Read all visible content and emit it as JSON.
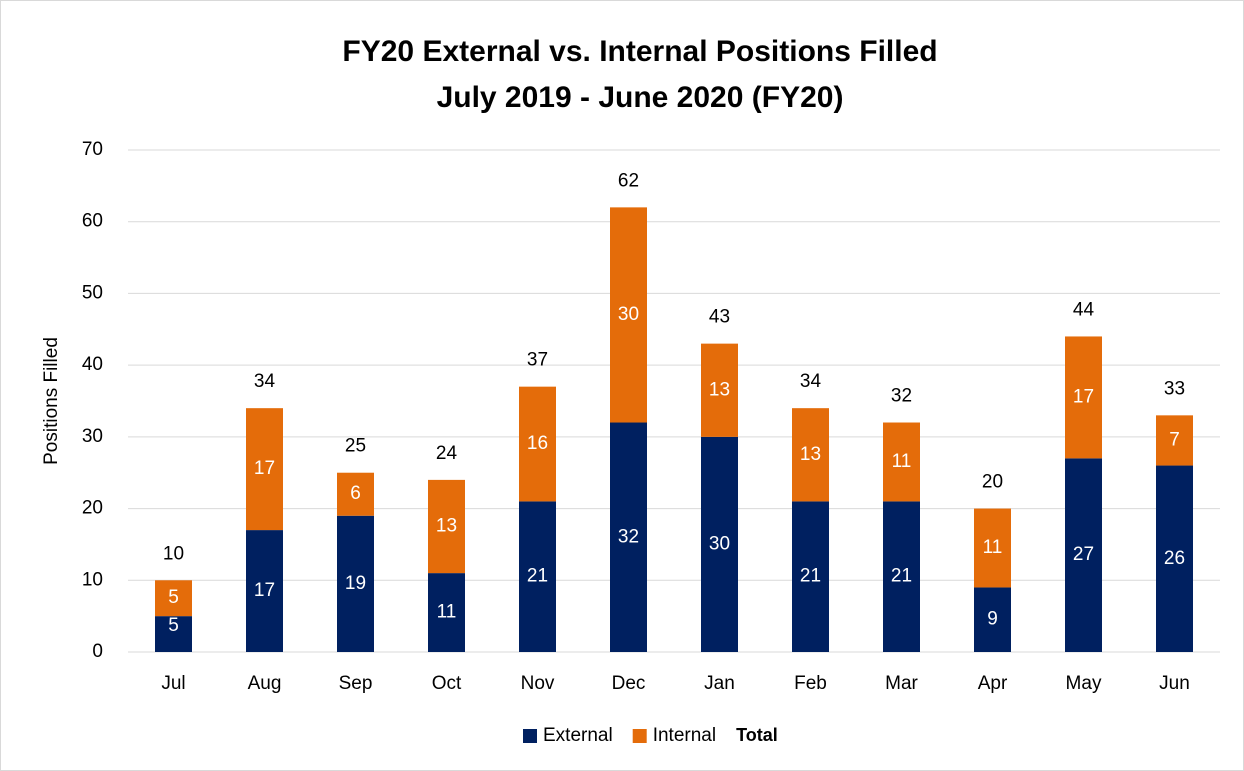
{
  "chart_data": {
    "type": "stacked_bar",
    "title": "FY20 External vs. Internal Positions Filled",
    "subtitle": "July 2019 - June 2020 (FY20)",
    "y_label": "Positions Filled",
    "categories": [
      "Jul",
      "Aug",
      "Sep",
      "Oct",
      "Nov",
      "Dec",
      "Jan",
      "Feb",
      "Mar",
      "Apr",
      "May",
      "Jun"
    ],
    "series": [
      {
        "name": "External",
        "color": "#002060",
        "values": [
          5,
          17,
          19,
          11,
          21,
          32,
          30,
          21,
          21,
          9,
          27,
          26
        ]
      },
      {
        "name": "Internal",
        "color": "#e46c0a",
        "values": [
          5,
          17,
          6,
          13,
          16,
          30,
          13,
          13,
          11,
          11,
          17,
          7
        ]
      },
      {
        "name": "Total",
        "values": [
          10,
          34,
          25,
          24,
          37,
          62,
          43,
          34,
          32,
          20,
          44,
          33
        ]
      }
    ],
    "ylim": [
      0,
      70
    ],
    "yticks": [
      0,
      10,
      20,
      30,
      40,
      50,
      60,
      70
    ],
    "grid": true,
    "legend": "bottom"
  }
}
